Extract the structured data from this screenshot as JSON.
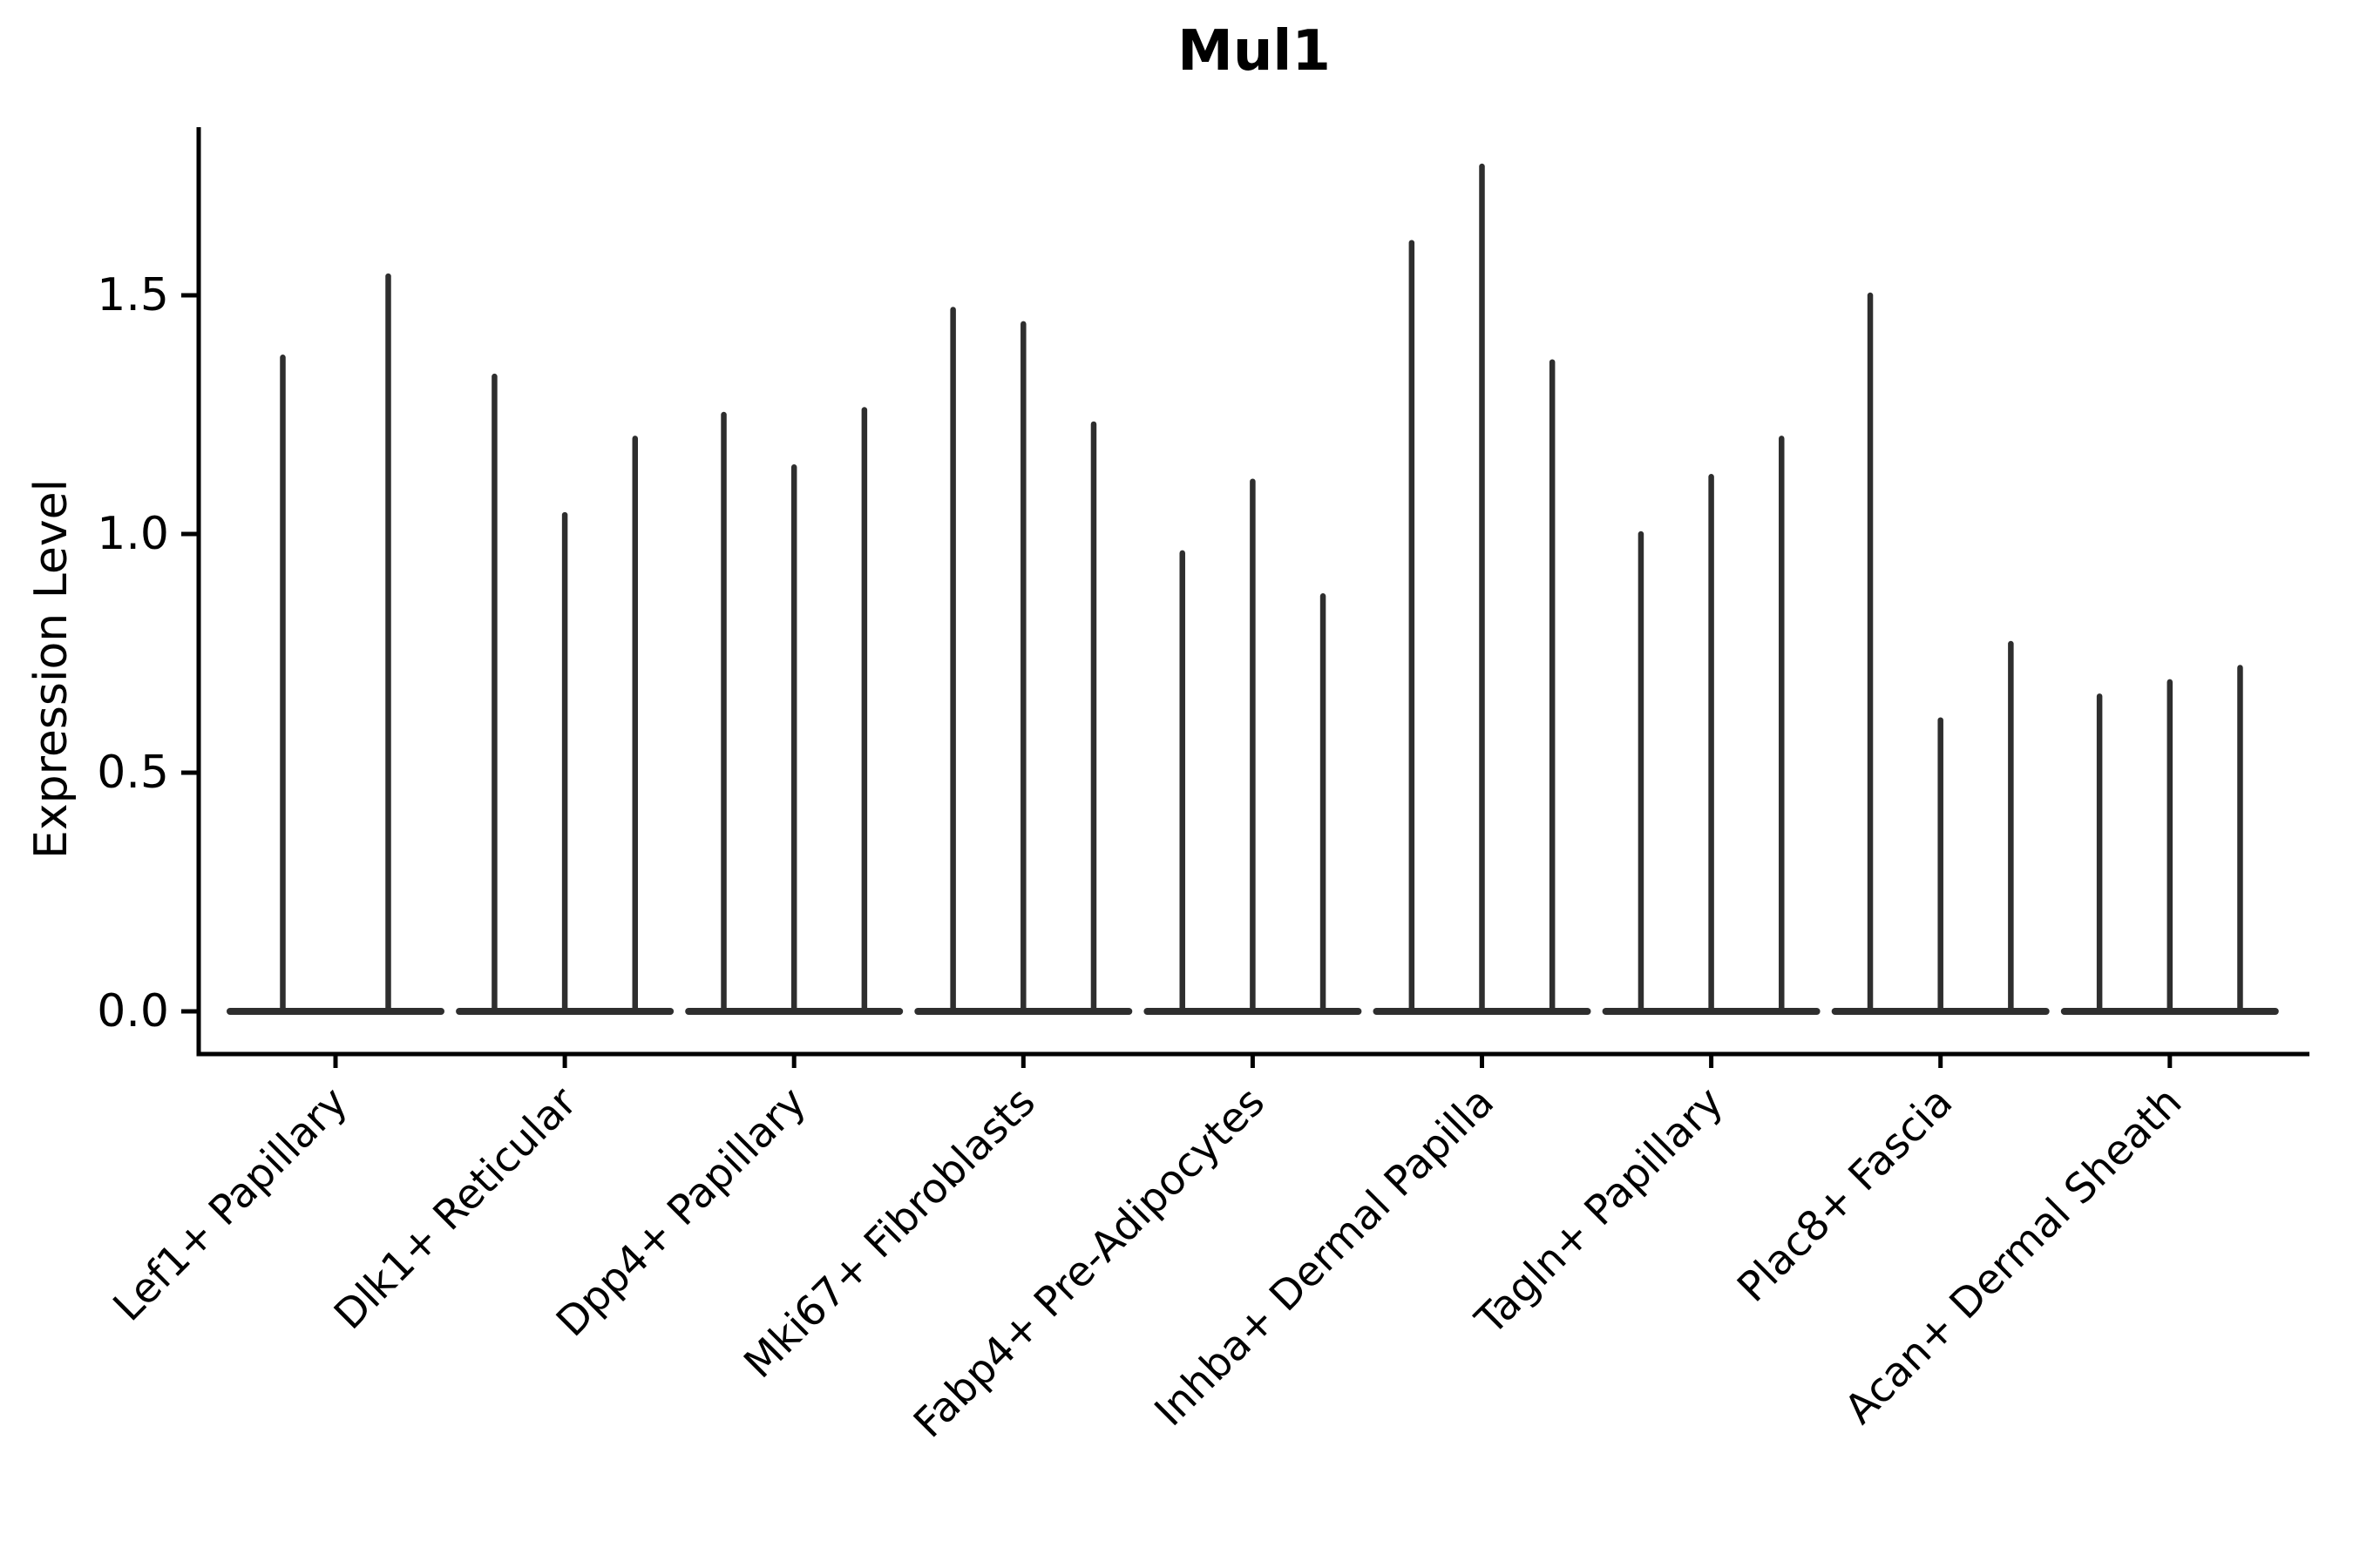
{
  "title": "Mul1",
  "y_axis": {
    "label": "Expression Level",
    "tick_labels": [
      "0.0",
      "0.5",
      "1.0",
      "1.5"
    ]
  },
  "x_axis": {
    "tick_labels": [
      "Lef1+ Papillary",
      "Dlk1+ Reticular",
      "Dpp4+ Papillary",
      "Mki67+ Fibroblasts",
      "Fabp4+ Pre-Adipocytes",
      "Inhba+ Dermal Papilla",
      "Tagln+ Papillary",
      "Plac8+ Fascia",
      "Acan+ Dermal Sheath"
    ]
  },
  "colors": {
    "violin": "#2e2e2e",
    "axis": "#000000",
    "text": "#000000",
    "background": "#ffffff"
  },
  "chart_data": {
    "type": "violin",
    "title": "Mul1",
    "xlabel": "",
    "ylabel": "Expression Level",
    "ylim": [
      0,
      1.85
    ],
    "yticks": [
      0.0,
      0.5,
      1.0,
      1.5
    ],
    "grid": false,
    "legend_position": "none",
    "style_note": "collapsed thin violins: bulk of cells at 0 gives a wide flat base at y=0, each violin rises as a narrow spike to its max expression",
    "categories": [
      "Lef1+ Papillary",
      "Dlk1+ Reticular",
      "Dpp4+ Papillary",
      "Mki67+ Fibroblasts",
      "Fabp4+ Pre-Adipocytes",
      "Inhba+ Dermal Papilla",
      "Tagln+ Papillary",
      "Plac8+ Fascia",
      "Acan+ Dermal Sheath"
    ],
    "series": [
      {
        "category": "Lef1+ Papillary",
        "violin_max_expression": [
          1.37,
          1.54
        ]
      },
      {
        "category": "Dlk1+ Reticular",
        "violin_max_expression": [
          1.33,
          1.04,
          1.2
        ]
      },
      {
        "category": "Dpp4+ Papillary",
        "violin_max_expression": [
          1.25,
          1.14,
          1.26
        ]
      },
      {
        "category": "Mki67+ Fibroblasts",
        "violin_max_expression": [
          1.47,
          1.44,
          1.23
        ]
      },
      {
        "category": "Fabp4+ Pre-Adipocytes",
        "violin_max_expression": [
          0.96,
          1.11,
          0.87
        ]
      },
      {
        "category": "Inhba+ Dermal Papilla",
        "violin_max_expression": [
          1.61,
          1.77,
          1.36
        ]
      },
      {
        "category": "Tagln+ Papillary",
        "violin_max_expression": [
          1.0,
          1.12,
          1.2
        ]
      },
      {
        "category": "Plac8+ Fascia",
        "violin_max_expression": [
          1.5,
          0.61,
          0.77
        ]
      },
      {
        "category": "Acan+ Dermal Sheath",
        "violin_max_expression": [
          0.66,
          0.69,
          0.72
        ]
      }
    ]
  }
}
